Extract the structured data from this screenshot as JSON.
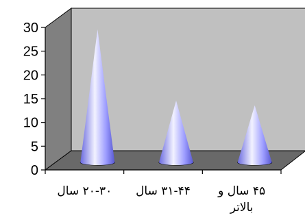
{
  "chart_data": {
    "type": "bar",
    "style": "3d-cone",
    "categories": [
      [
        "۲۰-۳۰ سال"
      ],
      [
        "۳۱-۴۴ سال"
      ],
      [
        "۴۵ سال و",
        "بالاتر"
      ]
    ],
    "values": [
      28,
      13,
      12
    ],
    "ylim": [
      0,
      30
    ],
    "yticks": [
      0,
      5,
      10,
      15,
      20,
      25,
      30
    ],
    "grid": false,
    "legend": "none",
    "colors": {
      "cone_light": "#e4e4ff",
      "cone_mid": "#9a9aff",
      "cone_dark": "#5c5cd6",
      "back_wall": "#c0c0c0",
      "side_wall": "#808080",
      "floor": "#696969",
      "axis": "#000000"
    }
  }
}
